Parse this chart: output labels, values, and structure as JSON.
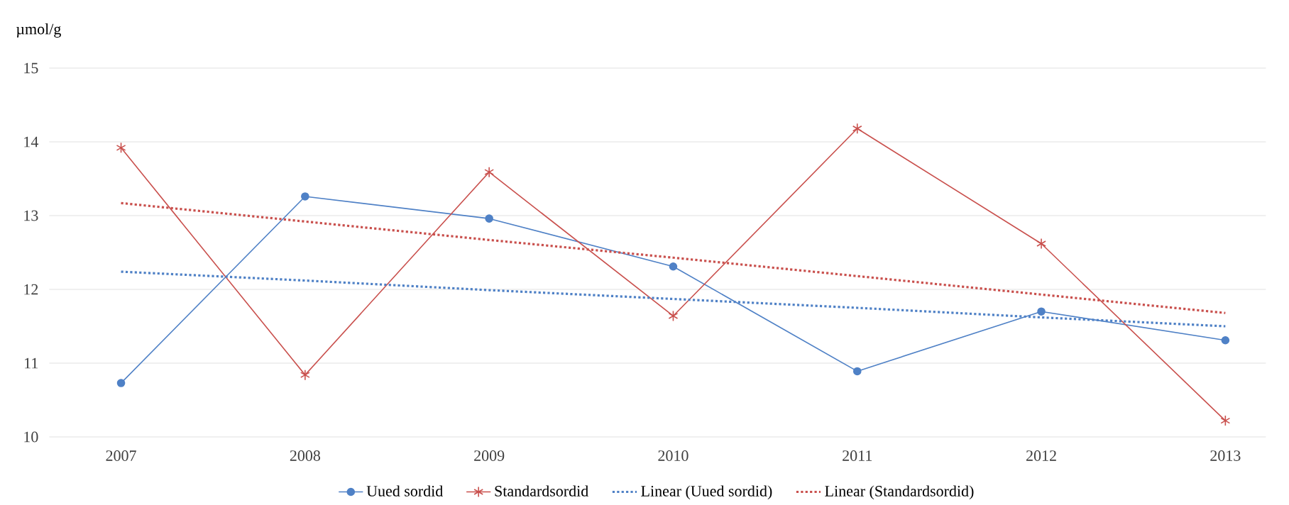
{
  "chart_data": {
    "type": "line",
    "ylabel": "µmol/g",
    "x": [
      2007,
      2008,
      2009,
      2010,
      2011,
      2012,
      2013
    ],
    "xlim": [
      2006.61,
      2013.22
    ],
    "xticks": [
      2007,
      2008,
      2009,
      2010,
      2011,
      2012,
      2013
    ],
    "ylim": [
      10,
      15
    ],
    "yticks": [
      10,
      11,
      12,
      13,
      14,
      15
    ],
    "grid": "y",
    "legend": "bottom",
    "series": [
      {
        "name": "Uued sordid",
        "color": "#4f81c6",
        "marker": "circle",
        "line_style": "solid",
        "values": [
          10.73,
          13.26,
          12.96,
          12.31,
          10.89,
          11.7,
          11.31
        ]
      },
      {
        "name": "Standardsordid",
        "color": "#c9504d",
        "marker": "cross",
        "line_style": "solid",
        "values": [
          13.92,
          10.84,
          13.59,
          11.64,
          14.18,
          12.62,
          10.22
        ]
      },
      {
        "name": "Linear (Uued sordid)",
        "color": "#4f81c6",
        "marker": "none",
        "line_style": "dotted",
        "values": [
          12.24,
          12.12,
          11.99,
          11.87,
          11.75,
          11.62,
          11.5
        ]
      },
      {
        "name": "Linear (Standardsordid)",
        "color": "#c9504d",
        "marker": "none",
        "line_style": "dotted",
        "values": [
          13.17,
          12.92,
          12.67,
          12.43,
          12.18,
          11.93,
          11.68
        ]
      }
    ]
  }
}
